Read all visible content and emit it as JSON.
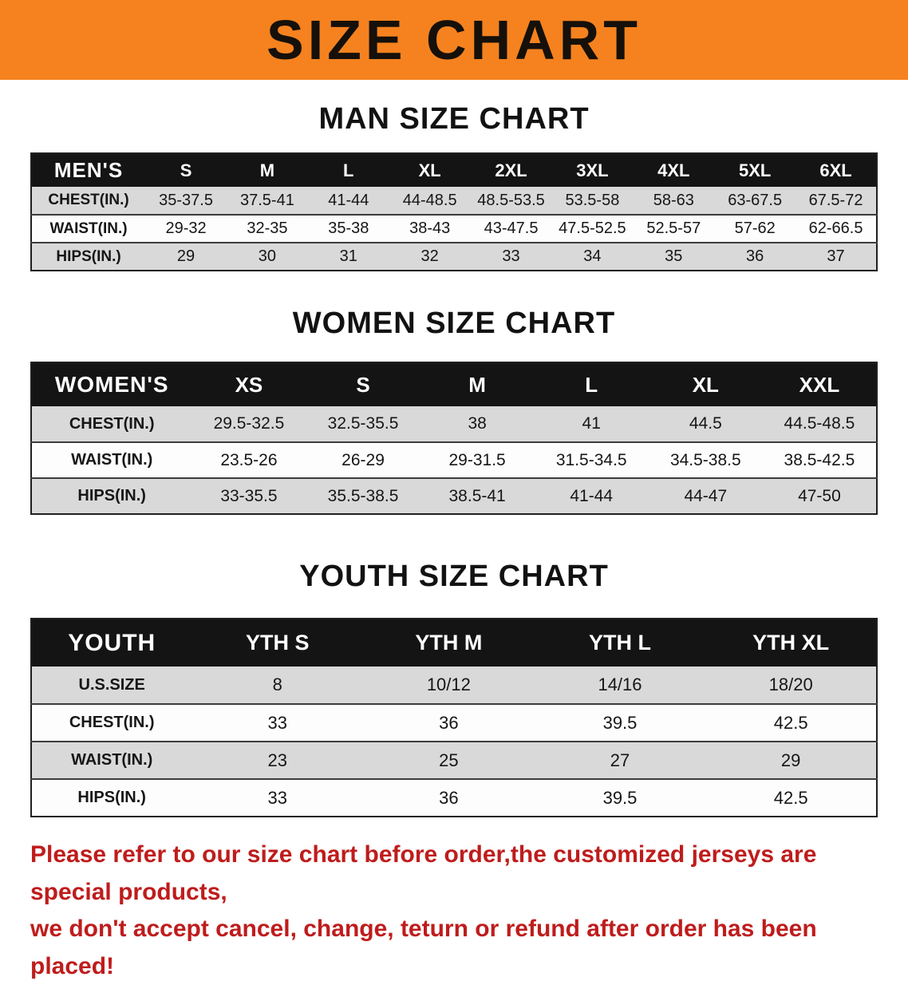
{
  "banner": {
    "title": "SIZE CHART",
    "bg_color": "#f5821f"
  },
  "colors": {
    "table_header_bg": "#141414",
    "row_stripe": "#d9d9d9",
    "disclaimer_red": "#bf1c1c"
  },
  "sections": [
    {
      "id": "men",
      "heading": "MAN SIZE CHART",
      "table": {
        "header": [
          "MEN'S",
          "S",
          "M",
          "L",
          "XL",
          "2XL",
          "3XL",
          "4XL",
          "5XL",
          "6XL"
        ],
        "rows": [
          [
            "CHEST(IN.)",
            "35-37.5",
            "37.5-41",
            "41-44",
            "44-48.5",
            "48.5-53.5",
            "53.5-58",
            "58-63",
            "63-67.5",
            "67.5-72"
          ],
          [
            "WAIST(IN.)",
            "29-32",
            "32-35",
            "35-38",
            "38-43",
            "43-47.5",
            "47.5-52.5",
            "52.5-57",
            "57-62",
            "62-66.5"
          ],
          [
            "HIPS(IN.)",
            "29",
            "30",
            "31",
            "32",
            "33",
            "34",
            "35",
            "36",
            "37"
          ]
        ]
      }
    },
    {
      "id": "women",
      "heading": "WOMEN SIZE CHART",
      "table": {
        "header": [
          "WOMEN'S",
          "XS",
          "S",
          "M",
          "L",
          "XL",
          "XXL"
        ],
        "rows": [
          [
            "CHEST(IN.)",
            "29.5-32.5",
            "32.5-35.5",
            "38",
            "41",
            "44.5",
            "44.5-48.5"
          ],
          [
            "WAIST(IN.)",
            "23.5-26",
            "26-29",
            "29-31.5",
            "31.5-34.5",
            "34.5-38.5",
            "38.5-42.5"
          ],
          [
            "HIPS(IN.)",
            "33-35.5",
            "35.5-38.5",
            "38.5-41",
            "41-44",
            "44-47",
            "47-50"
          ]
        ]
      }
    },
    {
      "id": "youth",
      "heading": "YOUTH SIZE CHART",
      "table": {
        "header": [
          "YOUTH",
          "YTH S",
          "YTH M",
          "YTH L",
          "YTH XL"
        ],
        "rows": [
          [
            "U.S.SIZE",
            "8",
            "10/12",
            "14/16",
            "18/20"
          ],
          [
            "CHEST(IN.)",
            "33",
            "36",
            "39.5",
            "42.5"
          ],
          [
            "WAIST(IN.)",
            "23",
            "25",
            "27",
            "29"
          ],
          [
            "HIPS(IN.)",
            "33",
            "36",
            "39.5",
            "42.5"
          ]
        ]
      }
    }
  ],
  "footer": {
    "line1": "Please refer to our size chart before order,the customized jerseys are special products,",
    "line2": "we don't accept cancel, change, teturn or refund after order has been placed!"
  }
}
